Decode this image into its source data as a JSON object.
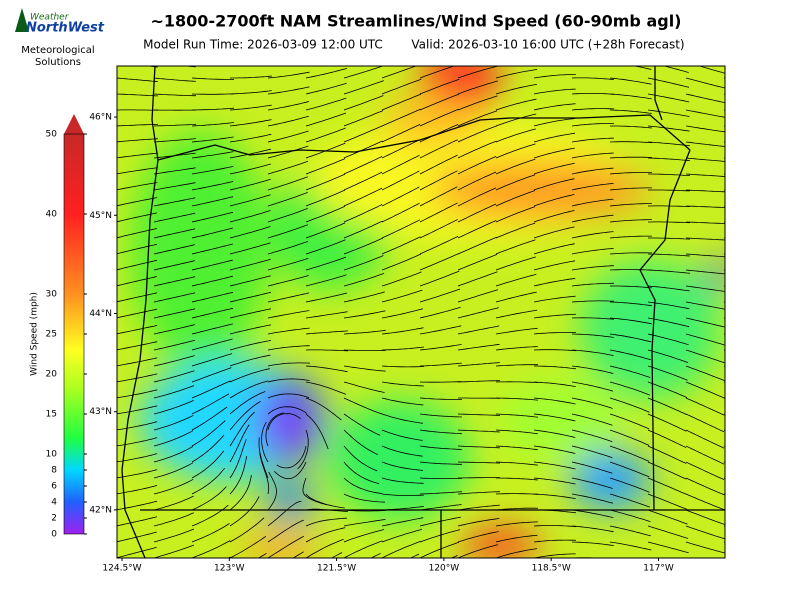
{
  "logo": {
    "brand_top": "Weather",
    "brand_bottom": "NorthWest",
    "tagline": [
      "Meteorological",
      "Solutions"
    ]
  },
  "header": {
    "title": "~1800-2700ft NAM Streamlines/Wind Speed (60-90mb agl)",
    "model_run": "Model Run Time: 2026-03-09 12:00 UTC",
    "valid": "Valid: 2026-03-10 16:00 UTC  (+28h Forecast)"
  },
  "colorbar": {
    "label": "Wind Speed (mph)",
    "lim": [
      0,
      50
    ],
    "ticks": [
      0,
      2,
      4,
      6,
      8,
      10,
      15,
      20,
      25,
      30,
      40,
      50
    ],
    "extend": "max"
  },
  "map": {
    "xlim": [
      -124.57,
      -116.07
    ],
    "ylim": [
      41.51,
      46.52
    ],
    "xticks": [
      {
        "value": -124.5,
        "label": "124.5°W"
      },
      {
        "value": -123,
        "label": "123°W"
      },
      {
        "value": -121.5,
        "label": "121.5°W"
      },
      {
        "value": -120,
        "label": "120°W"
      },
      {
        "value": -118.5,
        "label": "118.5°W"
      },
      {
        "value": -117,
        "label": "117°W"
      }
    ],
    "yticks": [
      {
        "value": 46,
        "label": "46°N"
      },
      {
        "value": 45,
        "label": "45°N"
      },
      {
        "value": 44,
        "label": "44°N"
      },
      {
        "value": 43,
        "label": "43°N"
      },
      {
        "value": 42,
        "label": "42°N"
      }
    ]
  }
}
